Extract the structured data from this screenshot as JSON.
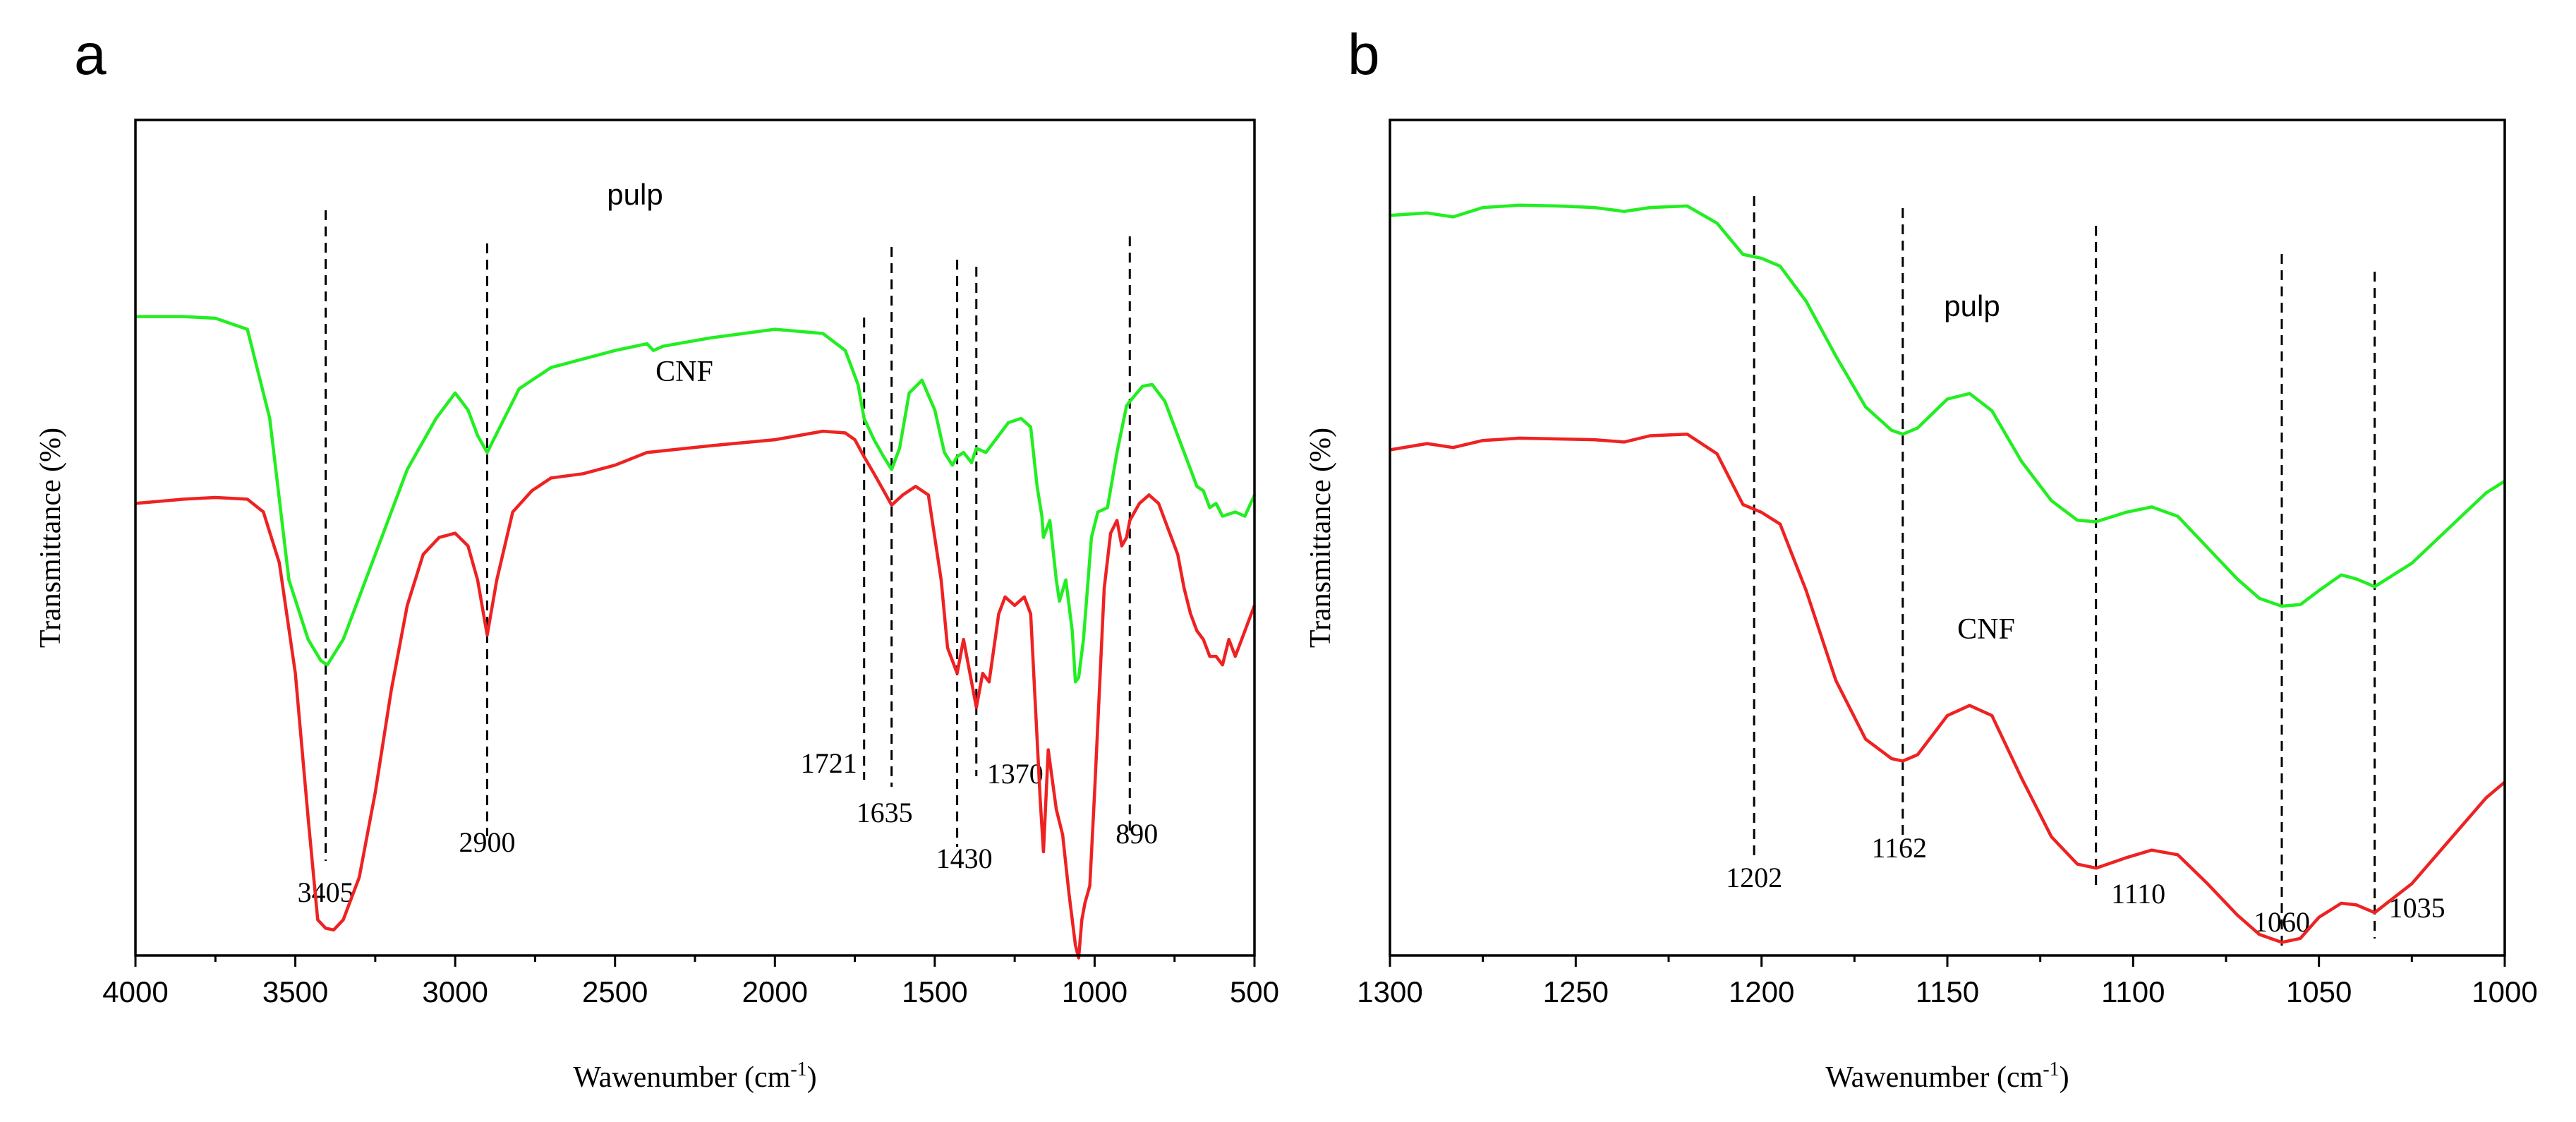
{
  "chart_data": [
    {
      "type": "line",
      "panel": "a",
      "title": "",
      "xlabel": "Wawenumber (cm",
      "xlabel_superscript": "-1",
      "xlabel_suffix": ")",
      "ylabel": "Transmittance (%)",
      "xlim": [
        4000,
        500
      ],
      "ylim": [
        0,
        100
      ],
      "x_reversed": true,
      "y_tick_labels": false,
      "xticks": [
        "4000",
        "3500",
        "3000",
        "2500",
        "2000",
        "1500",
        "1000",
        "500"
      ],
      "series": [
        {
          "name": "pulp",
          "label": "pulp",
          "color": "#22ee22",
          "x": [
            4000,
            3850,
            3750,
            3650,
            3580,
            3520,
            3460,
            3420,
            3400,
            3350,
            3250,
            3150,
            3060,
            3000,
            2960,
            2930,
            2900,
            2860,
            2800,
            2700,
            2500,
            2400,
            2380,
            2350,
            2200,
            2000,
            1850,
            1780,
            1740,
            1721,
            1690,
            1660,
            1635,
            1610,
            1580,
            1540,
            1500,
            1470,
            1445,
            1430,
            1410,
            1385,
            1370,
            1340,
            1300,
            1270,
            1230,
            1200,
            1180,
            1165,
            1160,
            1140,
            1120,
            1110,
            1090,
            1070,
            1060,
            1050,
            1035,
            1010,
            990,
            960,
            930,
            900,
            890,
            850,
            820,
            780,
            740,
            700,
            680,
            660,
            640,
            620,
            600,
            560,
            530,
            500
          ],
          "y": [
            86,
            86,
            85.8,
            84.5,
            74,
            55,
            48,
            45.5,
            45,
            48,
            58,
            68,
            74,
            77,
            75,
            72,
            70,
            73,
            77.5,
            80,
            82,
            82.8,
            82,
            82.5,
            83.5,
            84.5,
            84,
            82,
            78,
            74,
            71.5,
            69.5,
            68,
            70.5,
            77,
            78.5,
            75,
            70,
            68.5,
            69.5,
            70,
            68.8,
            70.5,
            70,
            72,
            73.5,
            74,
            73,
            66,
            62.5,
            60,
            62,
            55,
            52.5,
            55,
            49,
            43,
            43.5,
            48,
            60,
            63,
            63.5,
            70,
            75.5,
            76,
            77.8,
            78,
            76,
            72,
            68,
            66,
            65.5,
            63.5,
            64,
            62.5,
            63,
            62.5,
            65
          ]
        },
        {
          "name": "CNF",
          "label": "CNF",
          "color": "#ee2222",
          "x": [
            4000,
            3850,
            3750,
            3650,
            3600,
            3550,
            3500,
            3460,
            3430,
            3405,
            3380,
            3350,
            3300,
            3250,
            3200,
            3150,
            3100,
            3050,
            3000,
            2960,
            2930,
            2900,
            2870,
            2820,
            2760,
            2700,
            2600,
            2500,
            2400,
            2200,
            2000,
            1850,
            1780,
            1750,
            1721,
            1690,
            1660,
            1635,
            1600,
            1560,
            1520,
            1480,
            1460,
            1430,
            1410,
            1390,
            1370,
            1350,
            1330,
            1300,
            1280,
            1250,
            1220,
            1200,
            1185,
            1170,
            1160,
            1145,
            1120,
            1100,
            1080,
            1060,
            1050,
            1040,
            1030,
            1015,
            1000,
            985,
            970,
            950,
            930,
            915,
            900,
            890,
            860,
            830,
            800,
            780,
            760,
            740,
            720,
            700,
            680,
            660,
            640,
            620,
            600,
            580,
            560,
            540,
            520,
            500
          ],
          "y": [
            64,
            64.5,
            64.7,
            64.5,
            63,
            57,
            44,
            27,
            15,
            14,
            13.8,
            15,
            20,
            30,
            42,
            52,
            58,
            60,
            60.5,
            59,
            55,
            48.5,
            55,
            63,
            65.5,
            67,
            67.5,
            68.5,
            70,
            70.8,
            71.5,
            72.5,
            72.3,
            71.5,
            69.5,
            67.5,
            65.5,
            63.8,
            65,
            66,
            65,
            55,
            47,
            44,
            48,
            44,
            40,
            44,
            43,
            51,
            53,
            52,
            53,
            51,
            40,
            29,
            23,
            35,
            28,
            25,
            18,
            12,
            10.5,
            15,
            17,
            19,
            30,
            42,
            54,
            60.5,
            62,
            59,
            60,
            62,
            64,
            65,
            64,
            62,
            60,
            58,
            54,
            51,
            49,
            48,
            46,
            46,
            45,
            48,
            46,
            48,
            50,
            52
          ]
        }
      ],
      "series_labels": [
        "pulp",
        "CNF"
      ],
      "guides": [
        {
          "x": 3405,
          "label": "3405"
        },
        {
          "x": 2900,
          "label": "2900"
        },
        {
          "x": 1721,
          "label": "1721"
        },
        {
          "x": 1635,
          "label": "1635"
        },
        {
          "x": 1430,
          "label": "1430"
        },
        {
          "x": 1370,
          "label": "1370"
        },
        {
          "x": 890,
          "label": "890"
        }
      ]
    },
    {
      "type": "line",
      "panel": "b",
      "title": "",
      "xlabel": "Wawenumber (cm",
      "xlabel_superscript": "-1",
      "xlabel_suffix": ")",
      "ylabel": "Transmittance (%)",
      "xlim": [
        1300,
        1000
      ],
      "ylim": [
        0,
        100
      ],
      "x_reversed": true,
      "y_tick_labels": false,
      "xticks": [
        "1300",
        "1250",
        "1200",
        "1150",
        "1100",
        "1050",
        "1000"
      ],
      "series": [
        {
          "name": "pulp",
          "label": "pulp",
          "color": "#22ee22",
          "x": [
            1300,
            1290,
            1283,
            1275,
            1265,
            1255,
            1245,
            1237,
            1230,
            1220,
            1212,
            1205,
            1200,
            1195,
            1188,
            1180,
            1172,
            1165,
            1162,
            1158,
            1150,
            1144,
            1138,
            1130,
            1122,
            1115,
            1110,
            1102,
            1095,
            1088,
            1080,
            1072,
            1066,
            1060,
            1055,
            1050,
            1044,
            1040,
            1035,
            1025,
            1015,
            1005,
            1000
          ],
          "y": [
            88,
            88.3,
            87.8,
            89,
            89.3,
            89.2,
            89,
            88.5,
            89,
            89.2,
            87,
            83,
            82.5,
            81.5,
            77,
            70,
            63.5,
            60.5,
            60,
            60.8,
            64.5,
            65.2,
            63,
            56.5,
            51.5,
            49,
            48.8,
            50,
            50.7,
            49.5,
            45.5,
            41.5,
            39,
            38,
            38.2,
            40,
            42,
            41.5,
            40.5,
            43.5,
            48,
            52.5,
            54
          ]
        },
        {
          "name": "CNF",
          "label": "CNF",
          "color": "#ee2222",
          "x": [
            1300,
            1290,
            1283,
            1275,
            1265,
            1255,
            1245,
            1237,
            1230,
            1220,
            1212,
            1205,
            1200,
            1195,
            1188,
            1180,
            1172,
            1165,
            1162,
            1158,
            1150,
            1144,
            1138,
            1130,
            1122,
            1115,
            1110,
            1102,
            1095,
            1088,
            1080,
            1072,
            1066,
            1060,
            1055,
            1050,
            1044,
            1040,
            1035,
            1025,
            1015,
            1005,
            1000
          ],
          "y": [
            58,
            58.8,
            58.3,
            59.2,
            59.5,
            59.4,
            59.3,
            59,
            59.8,
            60,
            57.5,
            51,
            50,
            48.5,
            40,
            28.5,
            21,
            18.5,
            18.2,
            19,
            24,
            25.3,
            24,
            16,
            8.5,
            5,
            4.5,
            5.8,
            6.8,
            6.2,
            2.5,
            -1.5,
            -4,
            -5,
            -4.5,
            -1.8,
            0,
            -0.2,
            -1.2,
            2.5,
            8,
            13.5,
            15.5
          ]
        }
      ],
      "series_labels": [
        "pulp",
        "CNF"
      ],
      "guides": [
        {
          "x": 1202,
          "label": "1202"
        },
        {
          "x": 1162,
          "label": "1162"
        },
        {
          "x": 1110,
          "label": "1110"
        },
        {
          "x": 1060,
          "label": "1060"
        },
        {
          "x": 1035,
          "label": "1035"
        }
      ]
    }
  ]
}
